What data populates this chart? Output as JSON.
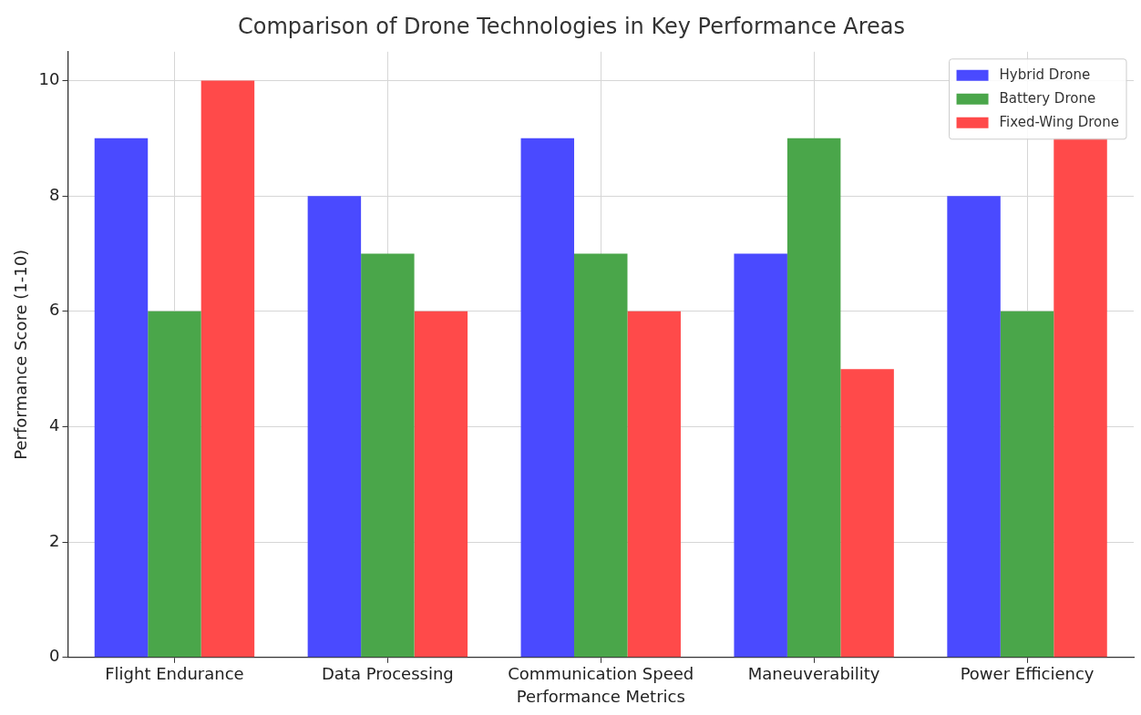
{
  "chart_data": {
    "type": "bar",
    "title": "Comparison of Drone Technologies in Key Performance Areas",
    "xlabel": "Performance Metrics",
    "ylabel": "Performance Score (1-10)",
    "categories": [
      "Flight Endurance",
      "Data Processing",
      "Communication Speed",
      "Maneuverability",
      "Power Efficiency"
    ],
    "series": [
      {
        "name": "Hybrid Drone",
        "color": "#4a4aff",
        "values": [
          9,
          8,
          9,
          7,
          8
        ]
      },
      {
        "name": "Battery Drone",
        "color": "#4aa64a",
        "values": [
          6,
          7,
          7,
          9,
          6
        ]
      },
      {
        "name": "Fixed-Wing Drone",
        "color": "#ff4a4a",
        "values": [
          10,
          6,
          6,
          5,
          9
        ]
      }
    ],
    "ylim": [
      0,
      10.5
    ],
    "yticks": [
      0,
      2,
      4,
      6,
      8,
      10
    ],
    "grid": true,
    "legend": "top right"
  }
}
